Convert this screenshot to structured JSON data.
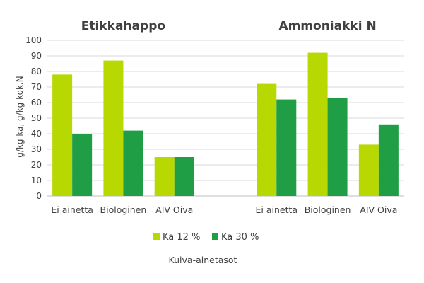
{
  "chart_data": {
    "type": "bar",
    "title": "",
    "ylabel": "g/kg ka, g/kg kok.N",
    "xlabel": "Kuiva-ainetasot",
    "ylim": [
      0,
      100
    ],
    "yticks": [
      0,
      10,
      20,
      30,
      40,
      50,
      60,
      70,
      80,
      90,
      100
    ],
    "grid": true,
    "legend_position": "bottom",
    "groups": [
      {
        "title": "Etikkahappo",
        "categories": [
          "Ei ainetta",
          "Biologinen",
          "AIV Oiva"
        ],
        "series": [
          {
            "name": "Ka 12 %",
            "values": [
              78,
              87,
              25
            ]
          },
          {
            "name": "Ka 30 %",
            "values": [
              40,
              42,
              25
            ]
          }
        ]
      },
      {
        "title": "Ammoniakki N",
        "categories": [
          "Ei ainetta",
          "Biologinen",
          "AIV Oiva"
        ],
        "series": [
          {
            "name": "Ka 12 %",
            "values": [
              72,
              92,
              33
            ]
          },
          {
            "name": "Ka 30 %",
            "values": [
              62,
              63,
              46
            ]
          }
        ]
      }
    ],
    "legend": [
      "Ka 12 %",
      "Ka 30 %"
    ],
    "colors": {
      "Ka 12 %": "#b7d800",
      "Ka 30 %": "#1f9e45"
    }
  }
}
